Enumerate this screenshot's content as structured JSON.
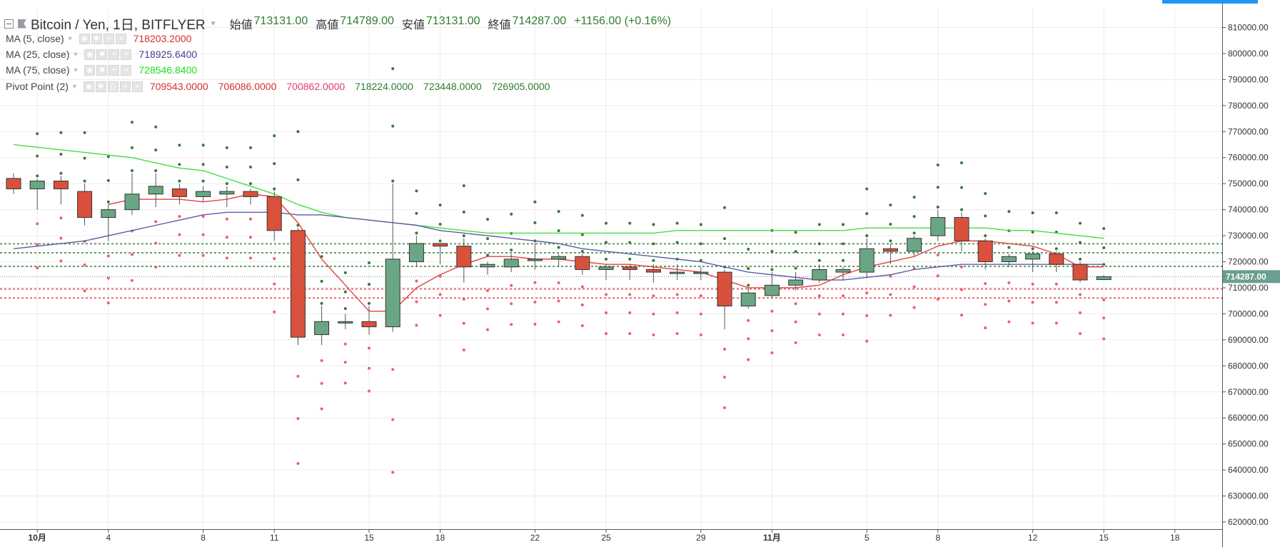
{
  "header": {
    "symbol": "Bitcoin / Yen, 1日, BITFLYER",
    "ohlc": [
      {
        "label": "始値",
        "value": "713131.00"
      },
      {
        "label": "高値",
        "value": "714789.00"
      },
      {
        "label": "安値",
        "value": "713131.00"
      },
      {
        "label": "終値",
        "value": "714287.00"
      }
    ],
    "change": "+1156.00 (+0.16%)"
  },
  "indicators": [
    {
      "name": "MA (5, close)",
      "values": [
        "718203.2000"
      ],
      "colors": [
        "#d32f2f"
      ]
    },
    {
      "name": "MA (25, close)",
      "values": [
        "718925.6400"
      ],
      "colors": [
        "#3f3f8f"
      ]
    },
    {
      "name": "MA (75, close)",
      "values": [
        "728546.8400"
      ],
      "colors": [
        "#22dd22"
      ]
    },
    {
      "name": "Pivot Point (2)",
      "values": [
        "709543.0000",
        "706086.0000",
        "700862.0000",
        "718224.0000",
        "723448.0000",
        "726905.0000"
      ],
      "colors": [
        "#d32f2f",
        "#d32f2f",
        "#e03a6a",
        "#2e7d32",
        "#2e7d32",
        "#2e7d32"
      ]
    }
  ],
  "chart_data": {
    "type": "candlestick",
    "ylim": [
      620000,
      815000
    ],
    "y_ticks": [
      "810000.00",
      "800000.00",
      "790000.00",
      "780000.00",
      "770000.00",
      "760000.00",
      "750000.00",
      "740000.00",
      "730000.00",
      "720000.00",
      "710000.00",
      "700000.00",
      "690000.00",
      "680000.00",
      "670000.00",
      "660000.00",
      "650000.00",
      "640000.00",
      "630000.00",
      "620000.00"
    ],
    "x_labels": [
      {
        "index": 1,
        "text": "10月"
      },
      {
        "index": 4,
        "text": "4"
      },
      {
        "index": 8,
        "text": "8"
      },
      {
        "index": 11,
        "text": "11"
      },
      {
        "index": 15,
        "text": "15"
      },
      {
        "index": 18,
        "text": "18"
      },
      {
        "index": 22,
        "text": "22"
      },
      {
        "index": 25,
        "text": "25"
      },
      {
        "index": 29,
        "text": "29"
      },
      {
        "index": 32,
        "text": "11月"
      },
      {
        "index": 36,
        "text": "5"
      },
      {
        "index": 39,
        "text": "8"
      },
      {
        "index": 43,
        "text": "12"
      },
      {
        "index": 46,
        "text": "15"
      },
      {
        "index": 49,
        "text": "18"
      }
    ],
    "last_price": "714287.00",
    "candles": [
      {
        "o": 752000,
        "h": 754000,
        "c": 748000,
        "l": 746000
      },
      {
        "o": 748000,
        "h": 752000,
        "c": 751000,
        "l": 740000
      },
      {
        "o": 751000,
        "h": 753000,
        "c": 748000,
        "l": 742000
      },
      {
        "o": 747000,
        "h": 750000,
        "c": 737000,
        "l": 734000
      },
      {
        "o": 737000,
        "h": 742000,
        "c": 740000,
        "l": 728000
      },
      {
        "o": 740000,
        "h": 754000,
        "c": 746000,
        "l": 738000
      },
      {
        "o": 746000,
        "h": 754000,
        "c": 749000,
        "l": 741000
      },
      {
        "o": 748000,
        "h": 750000,
        "c": 745000,
        "l": 742000
      },
      {
        "o": 745000,
        "h": 749000,
        "c": 747000,
        "l": 743000
      },
      {
        "o": 746000,
        "h": 749000,
        "c": 747000,
        "l": 741000
      },
      {
        "o": 747000,
        "h": 748000,
        "c": 745000,
        "l": 742000
      },
      {
        "o": 745000,
        "h": 747000,
        "c": 732000,
        "l": 728000
      },
      {
        "o": 732000,
        "h": 733000,
        "c": 691000,
        "l": 688000
      },
      {
        "o": 692000,
        "h": 703000,
        "c": 697000,
        "l": 688000
      },
      {
        "o": 697000,
        "h": 700000,
        "c": 697000,
        "l": 694000
      },
      {
        "o": 697000,
        "h": 703000,
        "c": 695000,
        "l": 692000
      },
      {
        "o": 695000,
        "h": 750000,
        "c": 721000,
        "l": 693000
      },
      {
        "o": 720000,
        "h": 730000,
        "c": 727000,
        "l": 718000
      },
      {
        "o": 727000,
        "h": 727000,
        "c": 726000,
        "l": 719000
      },
      {
        "o": 726000,
        "h": 729000,
        "c": 718000,
        "l": 712000
      },
      {
        "o": 718000,
        "h": 720000,
        "c": 719000,
        "l": 715000
      },
      {
        "o": 718000,
        "h": 723000,
        "c": 721000,
        "l": 716000
      },
      {
        "o": 721000,
        "h": 727000,
        "c": 721000,
        "l": 717000
      },
      {
        "o": 721000,
        "h": 723000,
        "c": 722000,
        "l": 718000
      },
      {
        "o": 722000,
        "h": 723000,
        "c": 717000,
        "l": 715000
      },
      {
        "o": 717000,
        "h": 719000,
        "c": 718000,
        "l": 713000
      },
      {
        "o": 718000,
        "h": 719000,
        "c": 717000,
        "l": 713000
      },
      {
        "o": 717000,
        "h": 719000,
        "c": 716000,
        "l": 712000
      },
      {
        "o": 716000,
        "h": 719000,
        "c": 716000,
        "l": 713000
      },
      {
        "o": 716000,
        "h": 718000,
        "c": 716000,
        "l": 713000
      },
      {
        "o": 716000,
        "h": 717000,
        "c": 703000,
        "l": 694000
      },
      {
        "o": 703000,
        "h": 710000,
        "c": 708000,
        "l": 702000
      },
      {
        "o": 707000,
        "h": 716000,
        "c": 711000,
        "l": 706000
      },
      {
        "o": 711000,
        "h": 716000,
        "c": 713000,
        "l": 709000
      },
      {
        "o": 713000,
        "h": 719000,
        "c": 717000,
        "l": 712000
      },
      {
        "o": 716000,
        "h": 718000,
        "c": 717000,
        "l": 713000
      },
      {
        "o": 716000,
        "h": 729000,
        "c": 725000,
        "l": 714000
      },
      {
        "o": 725000,
        "h": 727000,
        "c": 724000,
        "l": 719000
      },
      {
        "o": 724000,
        "h": 730000,
        "c": 729000,
        "l": 722000
      },
      {
        "o": 730000,
        "h": 740000,
        "c": 737000,
        "l": 728000
      },
      {
        "o": 737000,
        "h": 739000,
        "c": 728000,
        "l": 724000
      },
      {
        "o": 728000,
        "h": 729000,
        "c": 720000,
        "l": 717000
      },
      {
        "o": 720000,
        "h": 723000,
        "c": 722000,
        "l": 718000
      },
      {
        "o": 721000,
        "h": 724000,
        "c": 723000,
        "l": 716000
      },
      {
        "o": 723000,
        "h": 724000,
        "c": 719000,
        "l": 716000
      },
      {
        "o": 719000,
        "h": 720000,
        "c": 713000,
        "l": 712000
      },
      {
        "o": 713131,
        "h": 714789,
        "c": 714287,
        "l": 713131
      }
    ],
    "ma5": [
      null,
      null,
      null,
      null,
      742000,
      744000,
      744000,
      744000,
      743000,
      744000,
      746000,
      745000,
      735000,
      721000,
      711000,
      701000,
      701000,
      710000,
      715000,
      719000,
      722000,
      722000,
      721000,
      721000,
      720000,
      719000,
      719000,
      718000,
      717000,
      716000,
      713000,
      710000,
      710000,
      710000,
      711000,
      715000,
      718000,
      720000,
      722000,
      726000,
      728000,
      728000,
      727000,
      726000,
      723000,
      718000,
      718000
    ],
    "ma25": [
      725000,
      726000,
      727000,
      728000,
      730000,
      732000,
      734000,
      736000,
      738000,
      739000,
      739000,
      739000,
      738000,
      738000,
      737000,
      736000,
      735000,
      734000,
      732000,
      731000,
      730000,
      729000,
      728000,
      727000,
      725000,
      724000,
      723000,
      722000,
      721000,
      720000,
      718000,
      716000,
      715000,
      714000,
      713000,
      713000,
      714000,
      715000,
      717000,
      718000,
      719000,
      719000,
      719000,
      719000,
      719000,
      719000,
      719000
    ],
    "ma75": [
      765000,
      764000,
      763000,
      762000,
      761000,
      760000,
      758000,
      756000,
      755000,
      752000,
      749000,
      746000,
      742000,
      739000,
      737000,
      736000,
      735000,
      734000,
      733000,
      732000,
      731000,
      731000,
      731000,
      731000,
      731000,
      731000,
      731000,
      731000,
      732000,
      732000,
      732000,
      732000,
      732000,
      732000,
      732000,
      732000,
      733000,
      733000,
      733000,
      733000,
      733000,
      733000,
      732000,
      732000,
      731000,
      730000,
      729000
    ],
    "pivots_red": [
      [
        738000,
        730000,
        718000
      ],
      [
        737000,
        731000,
        719000
      ],
      [
        734000,
        727000,
        715000
      ],
      [
        733000,
        728000,
        714000
      ],
      [
        733000,
        725000,
        714000
      ],
      [
        730000,
        724000,
        716000
      ],
      [
        730000,
        724000,
        712000
      ],
      [
        732000,
        725000,
        713000
      ],
      [
        732000,
        725000,
        712000
      ],
      [
        712000,
        706000,
        693000
      ],
      [
        712000,
        703000,
        698000
      ],
      [
        715000,
        706000,
        709000
      ],
      [
        713000,
        706000,
        703000
      ],
      [
        715000,
        707000,
        711000
      ],
      [
        714000,
        707000,
        701000
      ],
      [
        710000,
        702000,
        700000
      ]
    ],
    "pivot_levels": [
      {
        "value": 726905,
        "color": "#2e7d32"
      },
      {
        "value": 723448,
        "color": "#2e7d32"
      },
      {
        "value": 718224,
        "color": "#2e7d32"
      },
      {
        "value": 709543,
        "color": "#e53935"
      },
      {
        "value": 706086,
        "color": "#e53935"
      }
    ]
  }
}
